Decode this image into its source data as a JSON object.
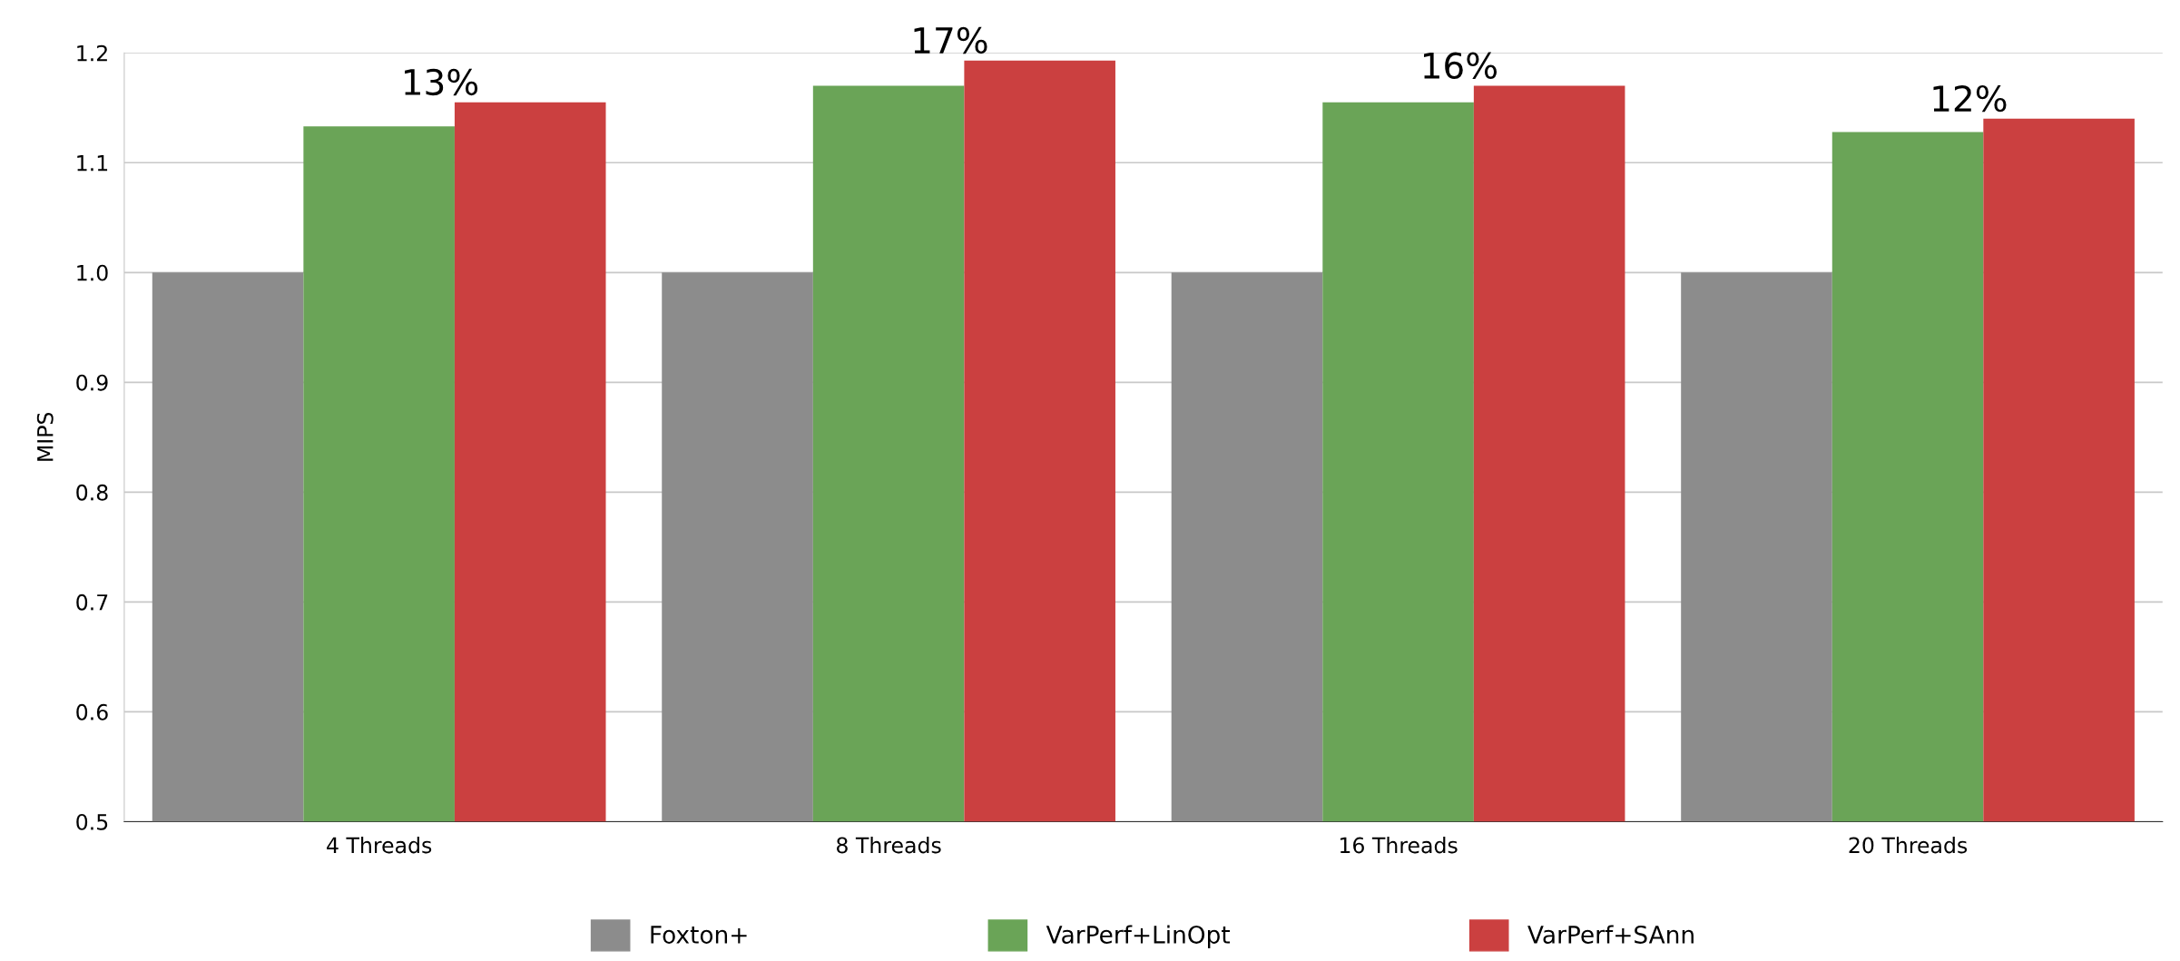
{
  "chart_data": {
    "type": "bar",
    "ylabel": "MIPS",
    "categories": [
      "4 Threads",
      "8 Threads",
      "16 Threads",
      "20 Threads"
    ],
    "series": [
      {
        "name": "Foxton+",
        "color": "#8c8c8c",
        "values": [
          1.0,
          1.0,
          1.0,
          1.0
        ]
      },
      {
        "name": "VarPerf+LinOpt",
        "color": "#6aa457",
        "values": [
          1.133,
          1.17,
          1.155,
          1.128
        ]
      },
      {
        "name": "VarPerf+SAnn",
        "color": "#cb4040",
        "values": [
          1.155,
          1.193,
          1.17,
          1.14
        ]
      }
    ],
    "ylim": [
      0.5,
      1.2
    ],
    "yticks": [
      0.5,
      0.6,
      0.7,
      0.8,
      0.9,
      {
        "value": 1.0,
        "label": "1.0"
      },
      1.1,
      1.2
    ],
    "grid": "y",
    "legend": "bottom",
    "annotations": [
      "13%",
      "17%",
      "16%",
      "12%"
    ]
  }
}
